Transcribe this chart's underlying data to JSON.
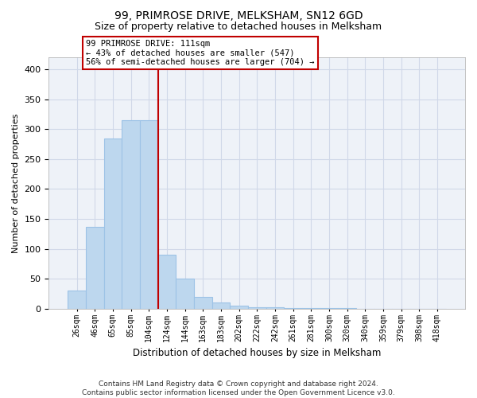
{
  "title_line1": "99, PRIMROSE DRIVE, MELKSHAM, SN12 6GD",
  "title_line2": "Size of property relative to detached houses in Melksham",
  "xlabel": "Distribution of detached houses by size in Melksham",
  "ylabel": "Number of detached properties",
  "footnote": "Contains HM Land Registry data © Crown copyright and database right 2024.\nContains public sector information licensed under the Open Government Licence v3.0.",
  "bins": [
    "26sqm",
    "46sqm",
    "65sqm",
    "85sqm",
    "104sqm",
    "124sqm",
    "144sqm",
    "163sqm",
    "183sqm",
    "202sqm",
    "222sqm",
    "242sqm",
    "261sqm",
    "281sqm",
    "300sqm",
    "320sqm",
    "340sqm",
    "359sqm",
    "379sqm",
    "398sqm",
    "418sqm"
  ],
  "values": [
    30,
    137,
    284,
    315,
    315,
    90,
    50,
    20,
    10,
    5,
    3,
    2,
    1,
    1,
    1,
    1,
    0,
    0,
    0,
    0,
    0
  ],
  "bar_color": "#BDD7EE",
  "bar_edge_color": "#9DC3E6",
  "property_line_x": 4.5,
  "annotation_text": "99 PRIMROSE DRIVE: 111sqm\n← 43% of detached houses are smaller (547)\n56% of semi-detached houses are larger (704) →",
  "line_color": "#C00000",
  "ylim": [
    0,
    420
  ],
  "yticks": [
    0,
    50,
    100,
    150,
    200,
    250,
    300,
    350,
    400
  ],
  "grid_color": "#D0D8E8",
  "bg_color": "#EEF2F8"
}
